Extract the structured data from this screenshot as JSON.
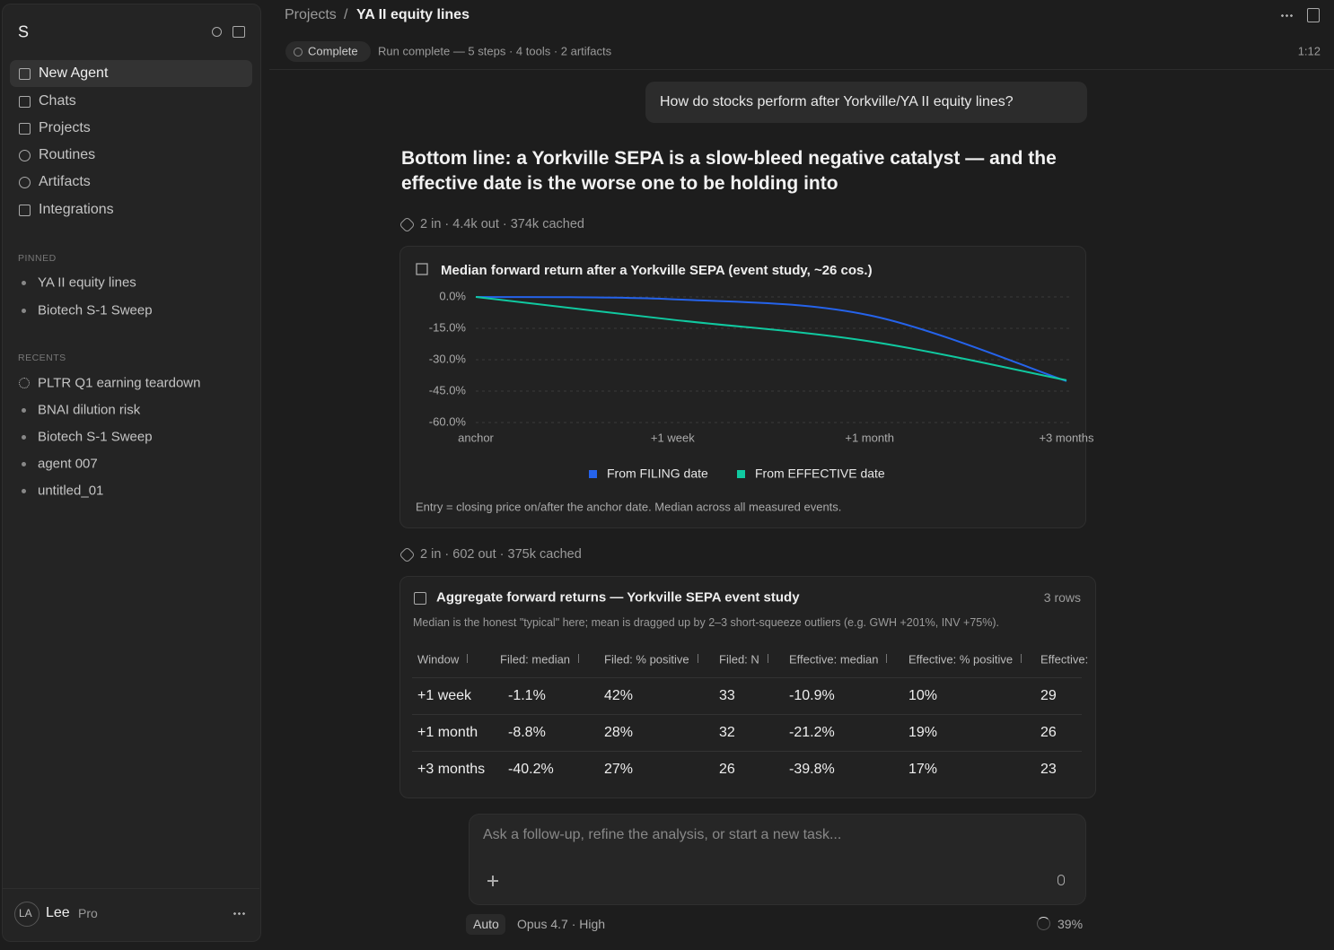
{
  "sidebar": {
    "logo": "S",
    "nav": [
      "New Agent",
      "Chats",
      "Projects",
      "Routines",
      "Artifacts",
      "Integrations"
    ],
    "pinned_label": "PINNED",
    "pinned": [
      "YA II equity lines",
      "Biotech S-1 Sweep"
    ],
    "recents_label": "RECENTS",
    "recents": [
      "PLTR Q1 earning teardown",
      "BNAI dilution risk",
      "Biotech S-1 Sweep",
      "agent 007",
      "untitled_01"
    ],
    "user": {
      "initials": "LA",
      "name": "Lee",
      "plan": "Pro"
    }
  },
  "header": {
    "breadcrumb": [
      "Projects",
      "YA II equity lines"
    ],
    "separator": "/",
    "status": "Complete",
    "run_summary": "Run complete — 5 steps · 4 tools · 2 artifacts",
    "time": "1:12"
  },
  "user_message": "How do stocks perform after Yorkville/YA II equity lines?",
  "answer_heading": "Bottom line: a Yorkville SEPA is a slow-bleed negative catalyst — and the effective date is the worse one to be holding into",
  "usage_1": "2 in · 4.4k out · 374k cached",
  "chart_data": {
    "type": "line",
    "title": "Median forward return after a Yorkville SEPA (event study, ~26 cos.)",
    "categories": [
      "anchor",
      "+1 week",
      "+1 month",
      "+3 months"
    ],
    "series": [
      {
        "name": "From FILING date",
        "color": "#2563eb",
        "values": [
          0,
          -1.1,
          -8.8,
          -40.2
        ]
      },
      {
        "name": "From EFFECTIVE date",
        "color": "#10c9a0",
        "values": [
          0,
          -10.9,
          -21.2,
          -39.8
        ]
      }
    ],
    "ylim": [
      -60,
      0
    ],
    "yticks": [
      {
        "value": 0,
        "label": "0.0%"
      },
      {
        "value": -15,
        "label": "-15.0%"
      },
      {
        "value": -30,
        "label": "-30.0%"
      },
      {
        "value": -45,
        "label": "-45.0%"
      },
      {
        "value": -60,
        "label": "-60.0%"
      }
    ],
    "grid": true,
    "legend": "bottom",
    "footnote": "Entry = closing price on/after the anchor date. Median across all measured events."
  },
  "usage_2": "2 in · 602 out · 375k cached",
  "table": {
    "title": "Aggregate forward returns — Yorkville SEPA event study",
    "row_count": "3 rows",
    "note": "Median is the honest \"typical\" here; mean is dragged up by 2–3 short-squeeze outliers (e.g. GWH +201%, INV +75%).",
    "columns": [
      "Window",
      "Filed: median",
      "Filed: % positive",
      "Filed: N",
      "Effective: median",
      "Effective: % positive",
      "Effective:"
    ],
    "rows": [
      [
        "+1 week",
        "-1.1%",
        "42%",
        "33",
        "-10.9%",
        "10%",
        "29"
      ],
      [
        "+1 month",
        "-8.8%",
        "28%",
        "32",
        "-21.2%",
        "19%",
        "26"
      ],
      [
        "+3 months",
        "-40.2%",
        "27%",
        "26",
        "-39.8%",
        "17%",
        "23"
      ]
    ]
  },
  "composer": {
    "placeholder": "Ask a follow-up, refine the analysis, or start a new task...",
    "mode": "Auto",
    "model": "Opus 4.7 · High",
    "context": "39%"
  }
}
